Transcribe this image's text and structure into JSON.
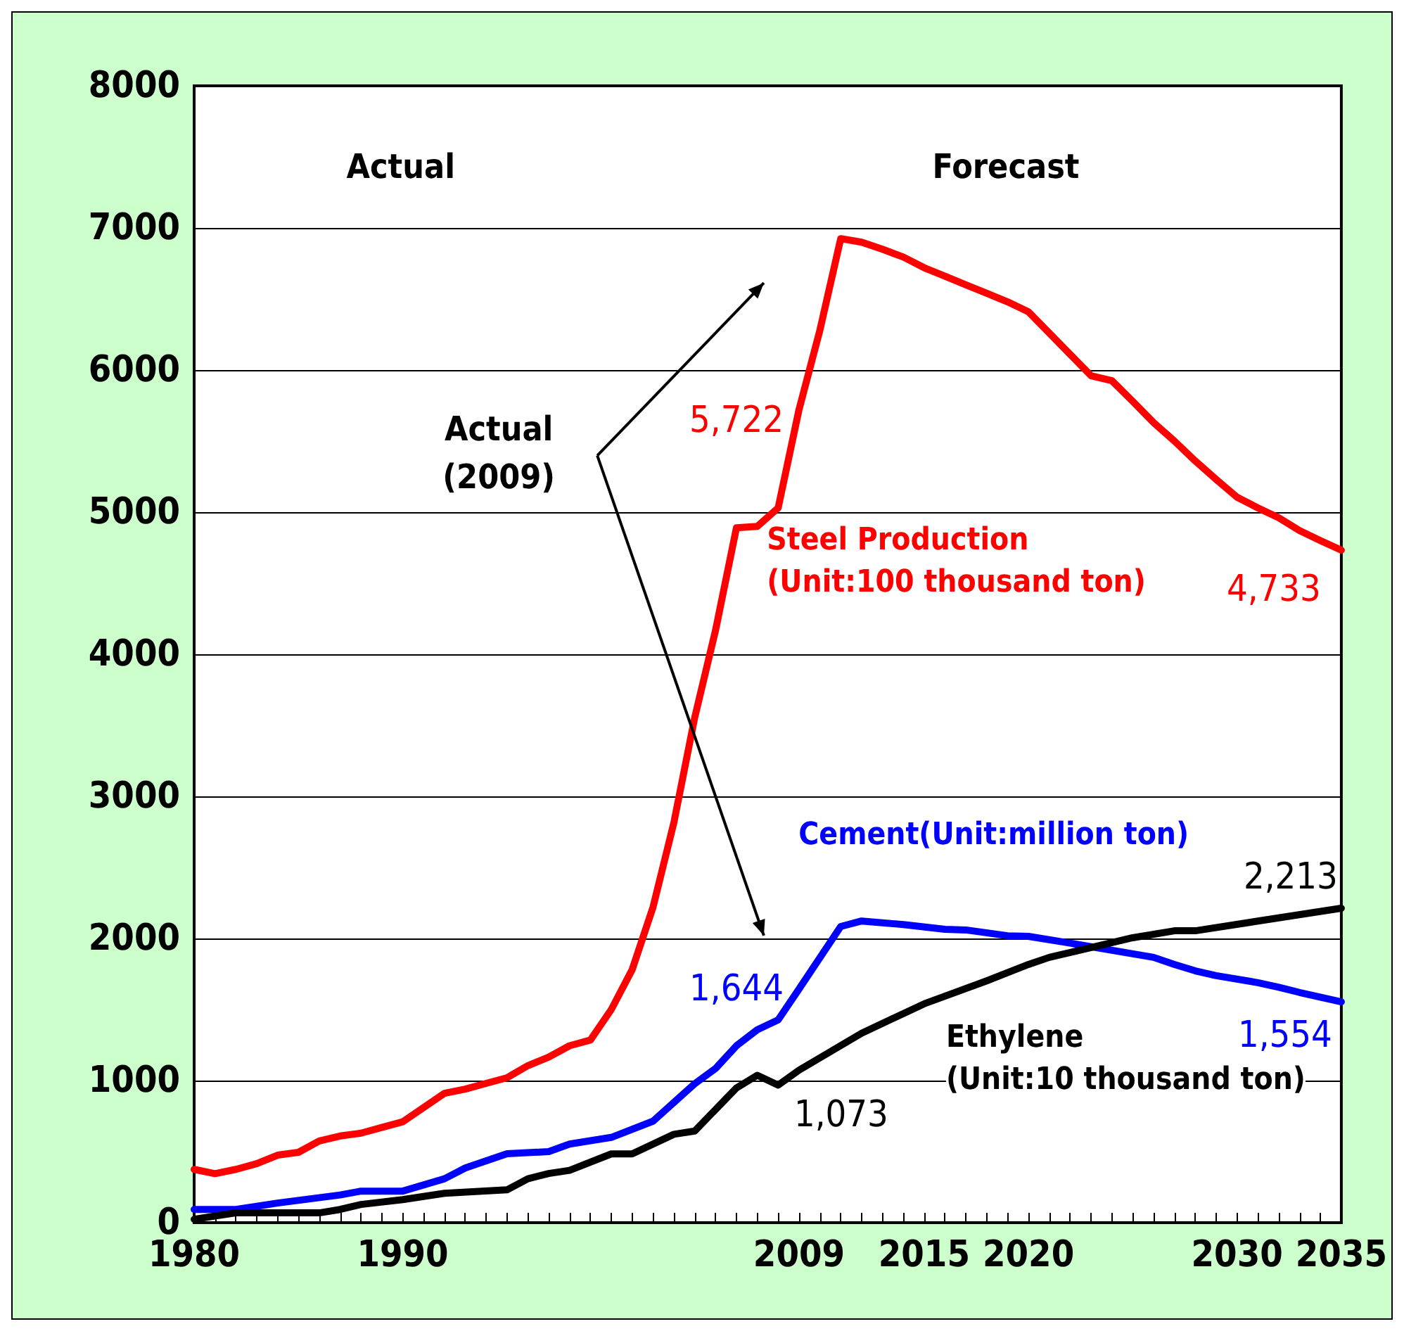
{
  "chart_data": {
    "type": "line",
    "xlim": [
      1980,
      2035
    ],
    "xticks": [
      1980,
      1990,
      2009,
      2015,
      2020,
      2030,
      2035
    ],
    "ylim": [
      0,
      8000
    ],
    "yticks": [
      0,
      1000,
      2000,
      3000,
      4000,
      5000,
      6000,
      7000,
      8000
    ],
    "grid": "y",
    "marker": "none",
    "line_style": "solid",
    "annotations": [
      "Actual",
      "Forecast",
      "Actual\n(2009)"
    ],
    "series": [
      {
        "name": "Steel Production\n(Unit:100 thousand ton)",
        "color": "#ff0000",
        "x": [
          1980,
          1981,
          1982,
          1983,
          1984,
          1985,
          1986,
          1987,
          1988,
          1989,
          1990,
          1991,
          1992,
          1993,
          1994,
          1995,
          1996,
          1997,
          1998,
          1999,
          2000,
          2001,
          2002,
          2003,
          2004,
          2005,
          2006,
          2007,
          2008,
          2009,
          2010,
          2011,
          2012,
          2013,
          2014,
          2015,
          2016,
          2017,
          2018,
          2019,
          2020,
          2021,
          2022,
          2023,
          2024,
          2025,
          2026,
          2027,
          2028,
          2029,
          2030,
          2031,
          2032,
          2033,
          2034,
          2035
        ],
        "values": [
          375,
          345,
          375,
          415,
          475,
          495,
          575,
          610,
          630,
          670,
          710,
          810,
          910,
          940,
          980,
          1020,
          1105,
          1165,
          1245,
          1285,
          1500,
          1780,
          2220,
          2815,
          3555,
          4170,
          4890,
          4900,
          5030,
          5722,
          6280,
          6925,
          6900,
          6850,
          6795,
          6720,
          6660,
          6600,
          6540,
          6480,
          6410,
          6260,
          6110,
          5960,
          5925,
          5780,
          5630,
          5500,
          5360,
          5230,
          5105,
          5030,
          4960,
          4870,
          4800,
          4733
        ],
        "value_labels": [
          null,
          null,
          null,
          null,
          null,
          null,
          null,
          null,
          null,
          null,
          null,
          null,
          null,
          null,
          null,
          null,
          null,
          null,
          null,
          null,
          null,
          null,
          null,
          null,
          null,
          null,
          null,
          null,
          null,
          "5,722",
          null,
          null,
          null,
          null,
          null,
          null,
          null,
          null,
          null,
          null,
          null,
          null,
          null,
          null,
          null,
          null,
          null,
          null,
          null,
          null,
          null,
          null,
          null,
          null,
          null,
          "4,733"
        ]
      },
      {
        "name": "Cement(Unit:million ton)",
        "color": "#0000ff",
        "x": [
          1980,
          1982,
          1984,
          1987,
          1988,
          1990,
          1992,
          1993,
          1995,
          1997,
          1998,
          2000,
          2002,
          2004,
          2005,
          2006,
          2007,
          2008,
          2009,
          2011,
          2012,
          2014,
          2016,
          2017,
          2019,
          2020,
          2022,
          2026,
          2027,
          2028,
          2029,
          2031,
          2032,
          2033,
          2035
        ],
        "values": [
          93,
          93,
          138,
          195,
          222,
          222,
          309,
          385,
          485,
          500,
          553,
          600,
          714,
          978,
          1085,
          1245,
          1358,
          1427,
          1644,
          2084,
          2123,
          2098,
          2064,
          2060,
          2019,
          2015,
          1967,
          1867,
          1817,
          1772,
          1738,
          1689,
          1657,
          1620,
          1554
        ],
        "value_labels": [
          null,
          null,
          null,
          null,
          null,
          null,
          null,
          null,
          null,
          null,
          null,
          null,
          null,
          null,
          null,
          null,
          null,
          null,
          "1,644",
          null,
          null,
          null,
          null,
          null,
          null,
          null,
          null,
          null,
          null,
          null,
          null,
          null,
          null,
          null,
          "1,554"
        ]
      },
      {
        "name": "Ethylene\n(Unit:10 thousand ton)",
        "color": "#000000",
        "x": [
          1980,
          1982,
          1986,
          1987,
          1988,
          1990,
          1992,
          1995,
          1996,
          1997,
          1998,
          2000,
          2001,
          2003,
          2004,
          2006,
          2007,
          2008,
          2009,
          2012,
          2015,
          2018,
          2020,
          2021,
          2025,
          2027,
          2028,
          2035
        ],
        "values": [
          24,
          69,
          69,
          93,
          128,
          162,
          207,
          231,
          309,
          346,
          368,
          484,
          484,
          622,
          645,
          948,
          1037,
          968,
          1073,
          1333,
          1540,
          1702,
          1817,
          1867,
          2005,
          2054,
          2054,
          2213
        ],
        "value_labels": [
          null,
          null,
          null,
          null,
          null,
          null,
          null,
          null,
          null,
          null,
          null,
          null,
          null,
          null,
          null,
          null,
          null,
          null,
          "1,073",
          null,
          null,
          null,
          null,
          null,
          null,
          null,
          null,
          "2,213"
        ]
      }
    ]
  }
}
